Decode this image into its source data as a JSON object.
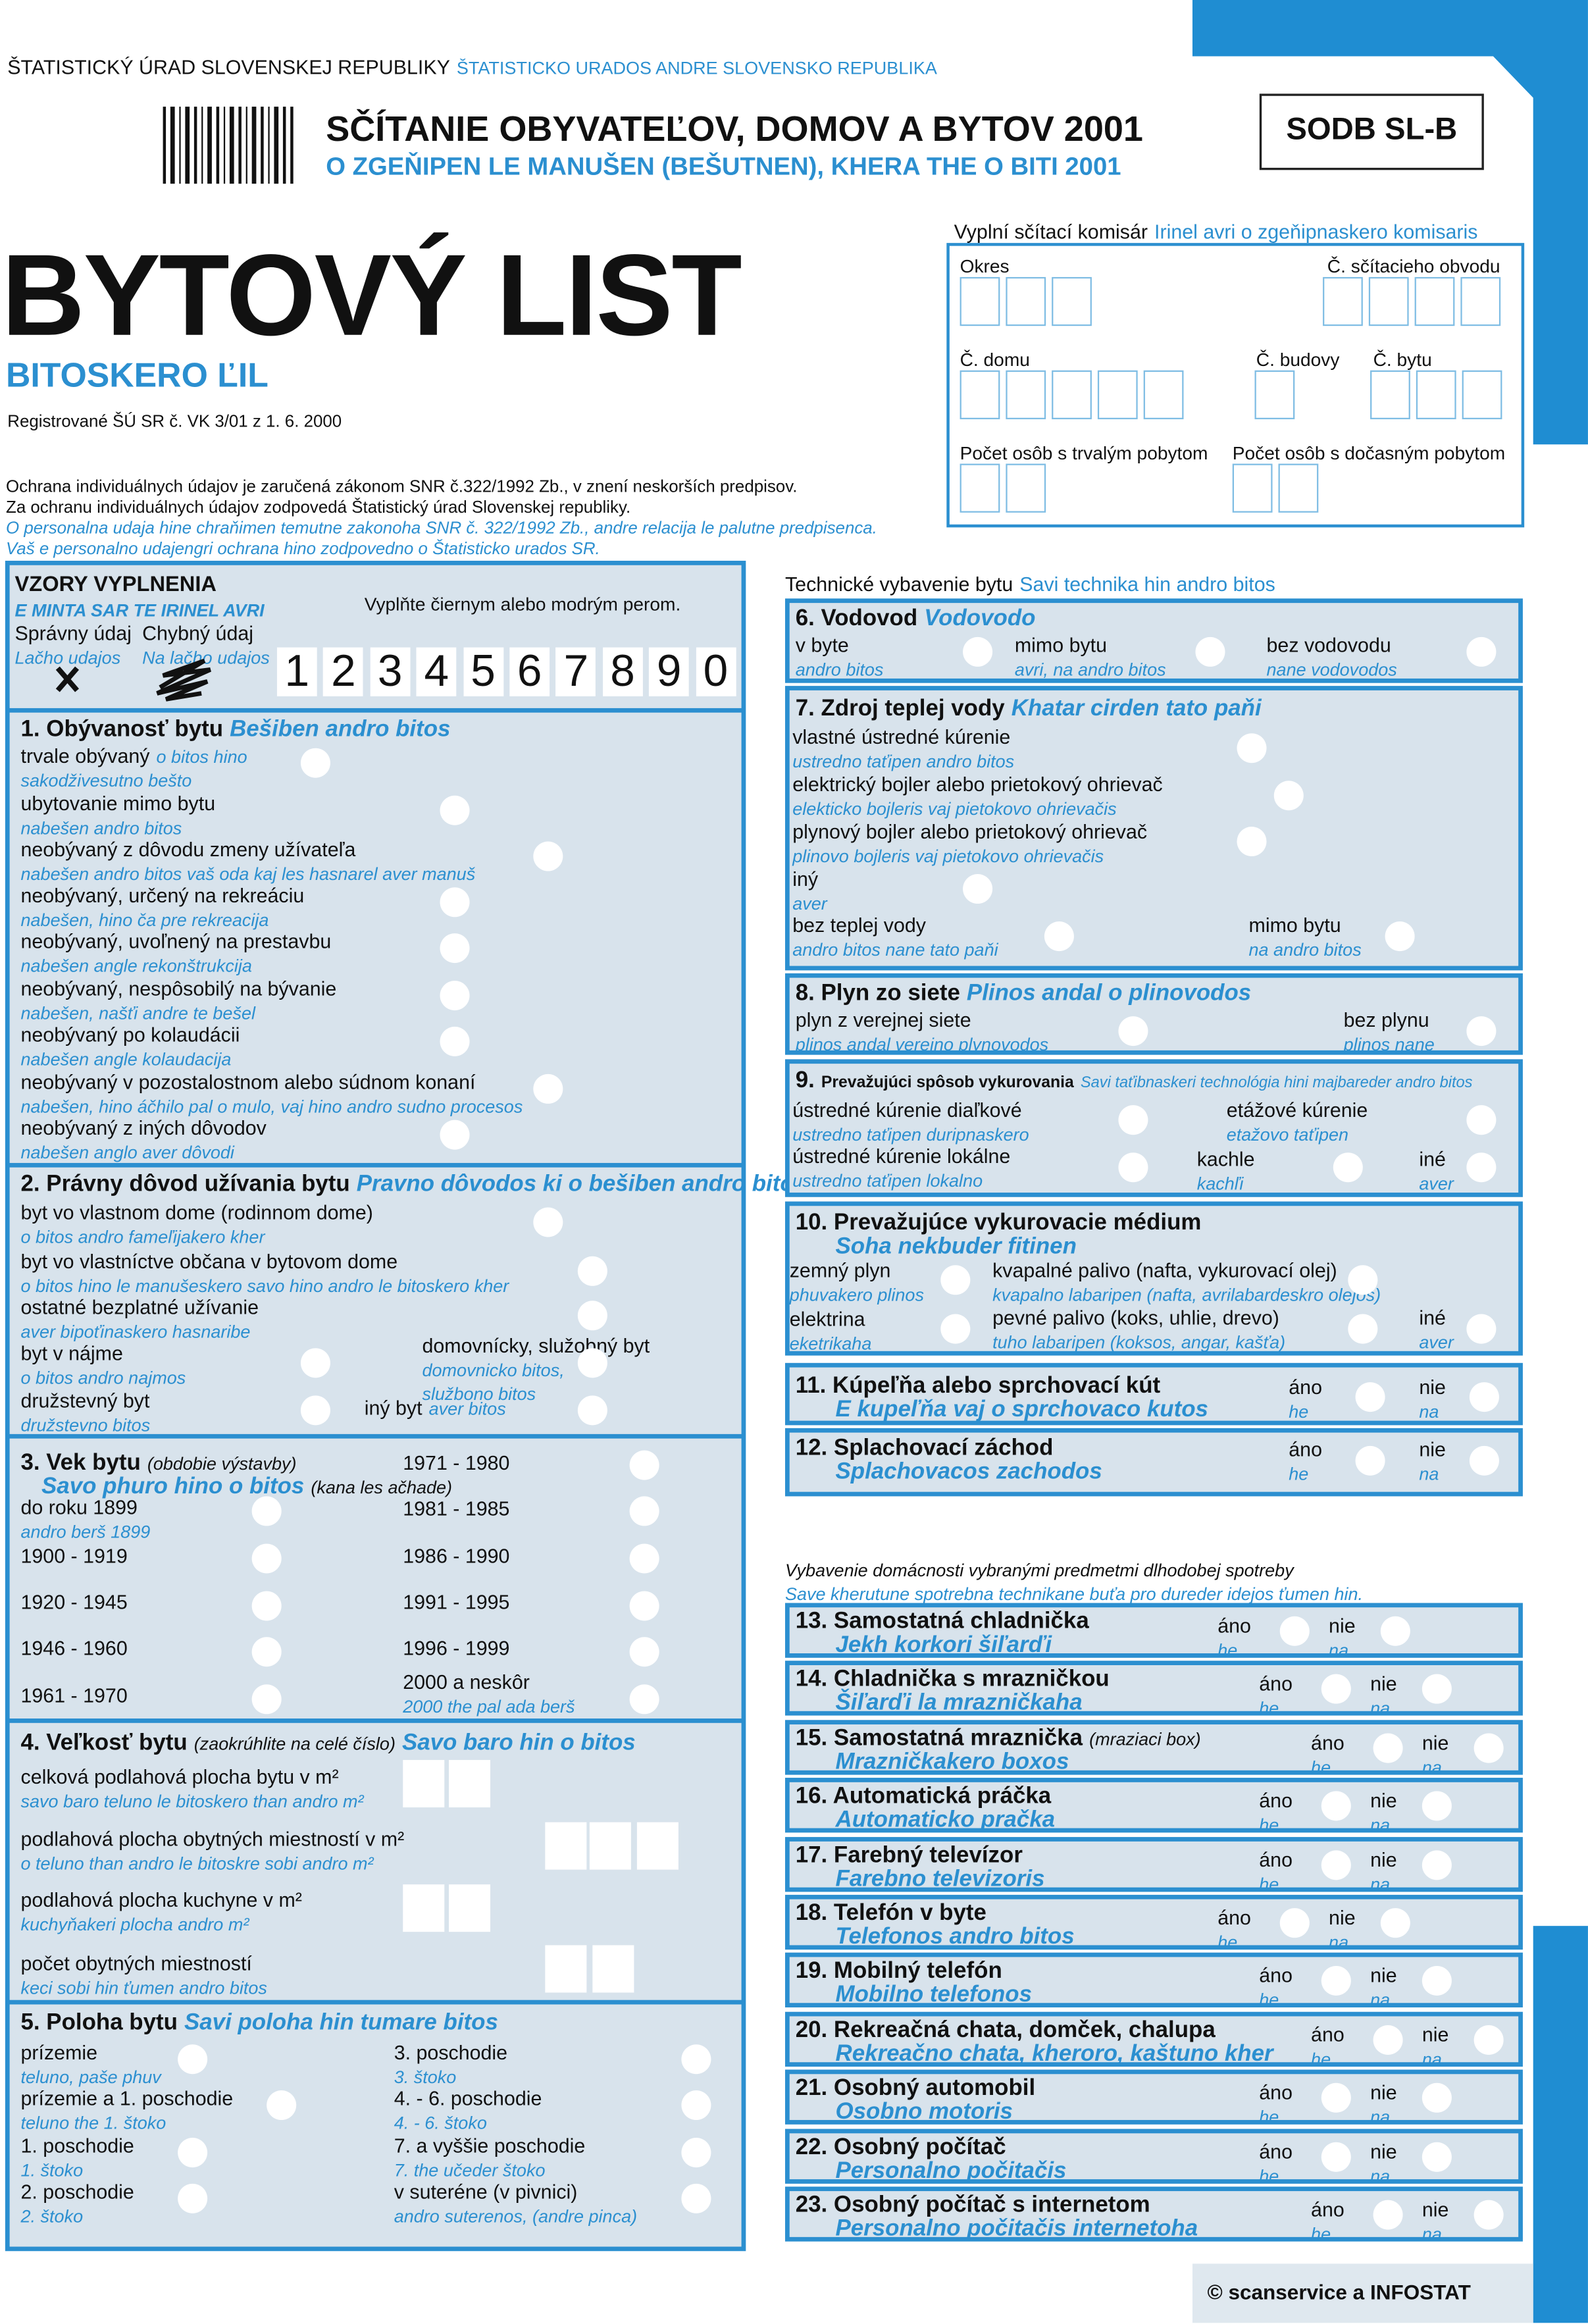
{
  "header": {
    "office_sk": "ŠTATISTICKÝ ÚRAD SLOVENSKEJ REPUBLIKY",
    "office_rom": "ŠTATISTICKO URADOS ANDRE SLOVENSKO REPUBLIKA",
    "census_sk": "SČÍTANIE OBYVATEĽOV, DOMOV A BYTOV 2001",
    "census_rom": "O ZGEŇIPEN LE MANUŠEN (BEŠUTNEN), KHERA THE O BITI 2001",
    "form_code": "SODB SL-B",
    "title": "BYTOVÝ LIST",
    "title_rom": "BITOSKERO ĽIL",
    "registration": "Registrované ŠÚ SR č. VK 3/01 z 1. 6. 2000",
    "privacy_sk": [
      "Ochrana individuálnych údajov je zaručená zákonom SNR č.322/1992 Zb., v znení neskorších predpisov.",
      "Za ochranu individuálnych údajov zodpovedá Štatistický úrad Slovenskej republiky."
    ],
    "privacy_rom": [
      "O personalna udaja hine chraňimen temutne zakonoha SNR č. 322/1992 Zb., andre relacija le palutne predpisenca.",
      "Vaš e personalno udajengri ochrana hino zodpovedno o Štatisticko urados SR."
    ]
  },
  "commissioner": {
    "label_sk": "Vyplní sčítací komisár",
    "label_rom": "Irinel avri o zgeňipnaskero komisaris",
    "fields": [
      "Okres",
      "Č. sčítacieho obvodu",
      "Č. domu",
      "Č. budovy",
      "Č. bytu",
      "Počet osôb s trvalým pobytom",
      "Počet osôb s dočasným pobytom"
    ]
  },
  "samples": {
    "title": "VZORY VYPLNENIA",
    "title_rom": "E MINTA SAR TE IRINEL AVRI",
    "instruction": "Vyplňte čiernym alebo modrým perom.",
    "correct": "Správny údaj",
    "correct_rom": "Lačho udajos",
    "wrong": "Chybný údaj",
    "wrong_rom": "Na lačho udajos",
    "digits": [
      "1",
      "2",
      "3",
      "4",
      "5",
      "6",
      "7",
      "8",
      "9",
      "0"
    ]
  },
  "answers": {
    "yes": "áno",
    "yes_rom": "he",
    "no": "nie",
    "no_rom": "na"
  },
  "questions": [
    {
      "title": "1. Obývanosť bytu",
      "title_rom": "Bešiben andro bitos",
      "options": [
        {
          "sk": "trvale obývaný",
          "rom": "o bitos hino sakodživesutno bešto"
        },
        {
          "sk": "ubytovanie mimo bytu",
          "rom": "nabešen andro bitos"
        },
        {
          "sk": "neobývaný z dôvodu zmeny užívateľa",
          "rom": "nabešen andro bitos vaš oda kaj les hasnarel aver manuš"
        },
        {
          "sk": "neobývaný, určený na rekreáciu",
          "rom": "nabešen, hino ča pre rekreacija"
        },
        {
          "sk": "neobývaný, uvoľnený na prestavbu",
          "rom": "nabešen angle rekonštrukcija"
        },
        {
          "sk": "neobývaný, nespôsobilý na bývanie",
          "rom": "nabešen, našťi andre te bešel"
        },
        {
          "sk": "neobývaný po kolaudácii",
          "rom": "nabešen angle kolaudacija"
        },
        {
          "sk": "neobývaný v pozostalostnom alebo súdnom konaní",
          "rom": "nabešen, hino áčhilo pal o mulo, vaj hino andro sudno procesos"
        },
        {
          "sk": "neobývaný z iných dôvodov",
          "rom": "nabešen anglo aver dôvodi"
        }
      ]
    },
    {
      "title": "2. Právny dôvod užívania bytu",
      "title_rom": "Pravno dôvodos ki o bešiben andro bitos",
      "options": [
        {
          "sk": "byt vo vlastnom dome (rodinnom dome)",
          "rom": "o bitos andro fameľijakero kher"
        },
        {
          "sk": "byt vo vlastníctve občana v bytovom dome",
          "rom": "o bitos hino le manušeskero savo hino andro le bitoskero kher"
        },
        {
          "sk": "ostatné bezplatné užívanie",
          "rom": "aver bipoťinaskero hasnaribe"
        },
        {
          "sk": "byt v nájme",
          "rom": "o bitos andro najmos"
        },
        {
          "sk": "domovnícky, služobný byt",
          "rom": "domovnicko bitos, službono bitos"
        },
        {
          "sk": "družstevný byt",
          "rom": "družstevno bitos"
        },
        {
          "sk": "iný byt",
          "rom": "aver bitos"
        }
      ]
    },
    {
      "title": "3. Vek bytu",
      "title_note": "(obdobie výstavby)",
      "title_rom": "Savo phuro hino o bitos",
      "title_rom_note": "(kana les ačhade)",
      "options": [
        {
          "sk": "do roku 1899",
          "rom": "andro berš 1899"
        },
        {
          "sk": "1900 - 1919"
        },
        {
          "sk": "1920 - 1945"
        },
        {
          "sk": "1946 - 1960"
        },
        {
          "sk": "1961 - 1970"
        },
        {
          "sk": "1971 - 1980"
        },
        {
          "sk": "1981 - 1985"
        },
        {
          "sk": "1986 - 1990"
        },
        {
          "sk": "1991 - 1995"
        },
        {
          "sk": "1996 - 1999"
        },
        {
          "sk": "2000 a neskôr",
          "rom": "2000  the pal ada berš"
        }
      ]
    },
    {
      "title": "4. Veľkosť bytu",
      "title_note": "(zaokrúhlite na celé číslo)",
      "title_rom": "Savo baro hin o bitos",
      "options": [
        {
          "sk": "celková podlahová plocha bytu v m²",
          "rom": "savo baro teluno le bitoskero than andro m²"
        },
        {
          "sk": "podlahová plocha obytných miestností v m²",
          "rom": "o teluno than andro le bitoskre sobi andro m²"
        },
        {
          "sk": "podlahová plocha kuchyne v m²",
          "rom": "kuchyňakeri plocha andro  m²"
        },
        {
          "sk": "počet obytných miestností",
          "rom": "keci sobi hin ťumen andro bitos"
        }
      ]
    },
    {
      "title": "5. Poloha bytu",
      "title_rom": "Savi poloha hin tumare bitos",
      "options": [
        {
          "sk": "prízemie",
          "rom": "teluno, paše phuv"
        },
        {
          "sk": "prízemie a 1. poschodie",
          "rom": "teluno the 1. štoko"
        },
        {
          "sk": "1. poschodie",
          "rom": "1. štoko"
        },
        {
          "sk": "2. poschodie",
          "rom": "2. štoko"
        },
        {
          "sk": "3. poschodie",
          "rom": "3. štoko"
        },
        {
          "sk": "4. - 6. poschodie",
          "rom": "4. - 6. štoko"
        },
        {
          "sk": "7. a vyššie poschodie",
          "rom": "7. the učeder štoko"
        },
        {
          "sk": "v suteréne (v pivnici)",
          "rom": "andro suterenos, (andre pinca)"
        }
      ]
    },
    {
      "title": "6. Vodovod",
      "title_rom": "Vodovodo",
      "options": [
        {
          "sk": "v byte",
          "rom": "andro bitos"
        },
        {
          "sk": "mimo bytu",
          "rom": "avri, na andro bitos"
        },
        {
          "sk": "bez vodovodu",
          "rom": "nane vodovodos"
        }
      ]
    },
    {
      "title": "7. Zdroj teplej vody",
      "title_rom": "Khatar cirden tato paňi",
      "options": [
        {
          "sk": "vlastné ústredné kúrenie",
          "rom": "ustredno taťipen andro bitos"
        },
        {
          "sk": "elektrický bojler alebo prietokový ohrievač",
          "rom": "elekticko bojleris vaj pietokovo ohrievačis"
        },
        {
          "sk": "plynový bojler alebo prietokový ohrievač",
          "rom": "plinovo bojleris vaj pietokovo ohrievačis"
        },
        {
          "sk": "iný",
          "rom": "aver"
        },
        {
          "sk": "bez teplej vody",
          "rom": "andro bitos nane tato paňi"
        },
        {
          "sk": "mimo bytu",
          "rom": "na andro bitos"
        }
      ]
    },
    {
      "title": "8. Plyn zo siete",
      "title_rom": "Plinos andal o plinovodos",
      "options": [
        {
          "sk": "plyn z verejnej siete",
          "rom": "plinos andal verejno plynovodos"
        },
        {
          "sk": "bez plynu",
          "rom": "plinos nane"
        }
      ]
    },
    {
      "title": "9.",
      "title_note": "Prevažujúci spôsob vykurovania",
      "title_rom": "Savi taťibnaskeri technológia hini majbareder andro bitos",
      "options": [
        {
          "sk": "ústredné kúrenie diaľkové",
          "rom": "ustredno taťipen duripnaskero"
        },
        {
          "sk": "etážové kúrenie",
          "rom": "etažovo taťipen"
        },
        {
          "sk": "ústredné kúrenie lokálne",
          "rom": "ustredno taťipen lokalno"
        },
        {
          "sk": "kachle",
          "rom": "kachľi"
        },
        {
          "sk": "iné",
          "rom": "aver"
        }
      ]
    },
    {
      "title": "10. Prevažujúce vykurovacie médium",
      "title_rom": "Soha nekbuder fitinen",
      "options": [
        {
          "sk": "zemný plyn",
          "rom": "phuvakero plinos"
        },
        {
          "sk": "kvapalné palivo (nafta, vykurovací olej)",
          "rom": "kvapalno labaripen (nafta, avrilabardeskro  olejos)"
        },
        {
          "sk": "elektrina",
          "rom": "eketrikaha"
        },
        {
          "sk": "pevné palivo (koks, uhlie, drevo)",
          "rom": "tuho labaripen (koksos, angar, kašťa)"
        },
        {
          "sk": "iné",
          "rom": "aver"
        }
      ]
    },
    {
      "title": "11. Kúpeľňa alebo sprchovací kút",
      "title_rom": "E kupeľňa vaj o sprchovaco kutos"
    },
    {
      "title": "12. Splachovací záchod",
      "title_rom": "Splachovacos zachodos"
    }
  ],
  "technical": {
    "label_sk": "Technické vybavenie bytu",
    "label_rom": "Savi technika hin andro bitos"
  },
  "household": {
    "label_sk": "Vybavenie domácnosti vybranými predmetmi dlhodobej spotreby",
    "label_rom": "Save kherutune spotrebna technikane buťa  pro dureder idejos ťumen hin.",
    "items": [
      {
        "title": "13. Samostatná chladnička",
        "title_rom": "Jekh korkori šiľarďi"
      },
      {
        "title": "14. Chladnička s mrazničkou",
        "title_rom": "Šiľarďi la mrazničkaha"
      },
      {
        "title": "15. Samostatná mraznička",
        "title_note": "(mraziaci box)",
        "title_rom": "Mrazničkakero boxos"
      },
      {
        "title": "16. Automatická práčka",
        "title_rom": "Automaticko pračka"
      },
      {
        "title": "17. Farebný televízor",
        "title_rom": "Farebno televizoris"
      },
      {
        "title": "18. Telefón v byte",
        "title_rom": "Telefonos andro bitos"
      },
      {
        "title": "19. Mobilný telefón",
        "title_rom": "Mobilno telefonos"
      },
      {
        "title": "20. Rekreačná chata, domček, chalupa",
        "title_rom": "Rekreačno chata, kheroro, kaštuno kher"
      },
      {
        "title": "21. Osobný automobil",
        "title_rom": "Osobno motoris"
      },
      {
        "title": "22. Osobný počítač",
        "title_rom": "Personalno počitačis"
      },
      {
        "title": "23. Osobný počítač s internetom",
        "title_rom": "Personalno počitačis internetoha"
      }
    ]
  },
  "footer": "© scanservice a INFOSTAT"
}
